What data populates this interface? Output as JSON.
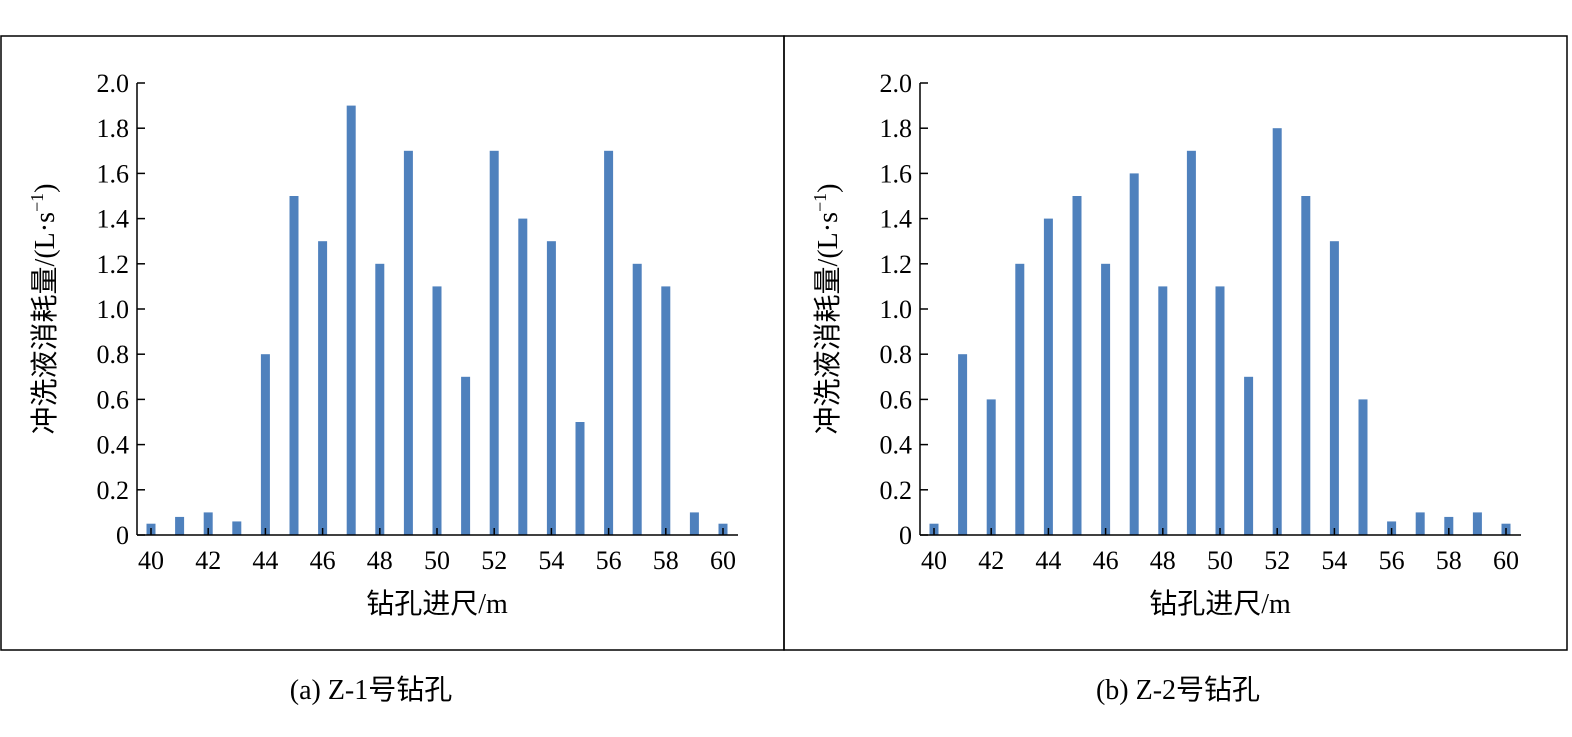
{
  "chart_data": [
    {
      "type": "bar",
      "caption": "(a) Z-1号钻孔",
      "xlabel": "钻孔进尺/m",
      "ylabel": "冲洗液消耗量/(L·s",
      "ylabel_sup": "−1",
      "ylabel_close": ")",
      "ylim": [
        0,
        2.0
      ],
      "xlim": [
        40,
        60
      ],
      "yticks": [
        "0",
        "0.2",
        "0.4",
        "0.6",
        "0.8",
        "1.0",
        "1.2",
        "1.4",
        "1.6",
        "1.8",
        "2.0"
      ],
      "xticks": [
        "40",
        "42",
        "44",
        "46",
        "48",
        "50",
        "52",
        "54",
        "56",
        "58",
        "60"
      ],
      "x": [
        40,
        41,
        42,
        43,
        44,
        45,
        46,
        47,
        48,
        49,
        50,
        51,
        52,
        53,
        54,
        55,
        56,
        57,
        58,
        59,
        60
      ],
      "values": [
        0.05,
        0.08,
        0.1,
        0.06,
        0.8,
        1.5,
        1.3,
        1.9,
        1.2,
        1.7,
        1.1,
        0.7,
        1.7,
        1.4,
        1.3,
        0.5,
        1.7,
        1.2,
        1.1,
        0.1,
        0.05
      ],
      "bar_color": "#4F81BD",
      "grid": false
    },
    {
      "type": "bar",
      "caption": "(b) Z-2号钻孔",
      "xlabel": "钻孔进尺/m",
      "ylabel": "冲洗液消耗量/(L·s",
      "ylabel_sup": "−1",
      "ylabel_close": ")",
      "ylim": [
        0,
        2.0
      ],
      "xlim": [
        40,
        60
      ],
      "yticks": [
        "0",
        "0.2",
        "0.4",
        "0.6",
        "0.8",
        "1.0",
        "1.2",
        "1.4",
        "1.6",
        "1.8",
        "2.0"
      ],
      "xticks": [
        "40",
        "42",
        "44",
        "46",
        "48",
        "50",
        "52",
        "54",
        "56",
        "58",
        "60"
      ],
      "x": [
        40,
        41,
        42,
        43,
        44,
        45,
        46,
        47,
        48,
        49,
        50,
        51,
        52,
        53,
        54,
        55,
        56,
        57,
        58,
        59,
        60
      ],
      "values": [
        0.05,
        0.8,
        0.6,
        1.2,
        1.4,
        1.5,
        1.2,
        1.6,
        1.1,
        1.7,
        1.1,
        0.7,
        1.8,
        1.5,
        1.3,
        0.6,
        0.06,
        0.1,
        0.08,
        0.1,
        0.05
      ],
      "bar_color": "#4F81BD",
      "grid": false
    }
  ]
}
